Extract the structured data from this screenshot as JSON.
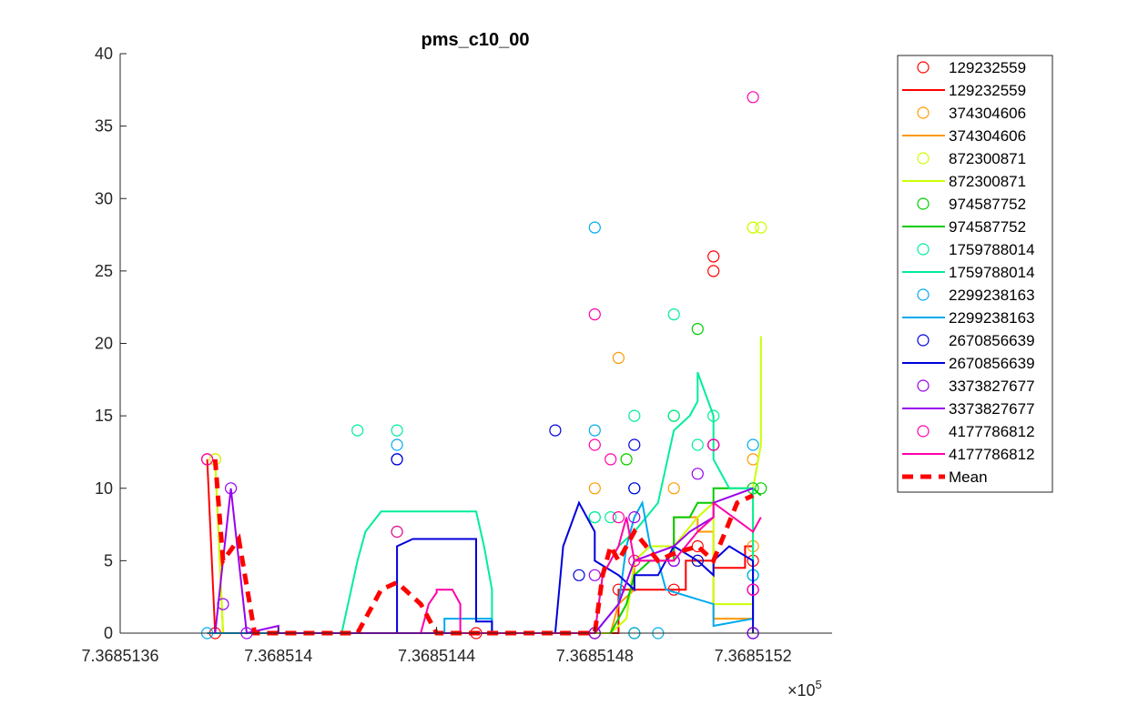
{
  "chart_data": {
    "type": "line",
    "title": "pms_c10_00",
    "xlabel": "",
    "ylabel": "",
    "x_exponent_label": "×10",
    "x_exponent_power": "5",
    "xlim": [
      7.3685136,
      7.3685154
    ],
    "ylim": [
      0,
      40
    ],
    "x_ticks": [
      7.3685136,
      7.368514,
      7.3685144,
      7.3685148,
      7.3685152
    ],
    "x_tick_labels": [
      "7.3685136",
      "7.368514",
      "7.3685144",
      "7.3685148",
      "7.3685152"
    ],
    "y_ticks": [
      0,
      5,
      10,
      15,
      20,
      25,
      30,
      35,
      40
    ],
    "y_tick_labels": [
      "0",
      "5",
      "10",
      "15",
      "20",
      "25",
      "30",
      "35",
      "40"
    ],
    "legend_position": "outside-right",
    "series": [
      {
        "name": "129232559",
        "color": "#ff0000",
        "points": [
          [
            7.36851382,
            12
          ],
          [
            7.36851384,
            0
          ],
          [
            7.3685145,
            0
          ],
          [
            7.3685148,
            0
          ],
          [
            7.36851486,
            3
          ],
          [
            7.368515,
            3
          ],
          [
            7.36851506,
            6
          ],
          [
            7.3685151,
            26
          ],
          [
            7.3685151,
            25
          ],
          [
            7.3685152,
            5
          ]
        ],
        "line": [
          [
            7.36851382,
            12
          ],
          [
            7.36851384,
            0
          ],
          [
            7.36851486,
            0
          ],
          [
            7.36851486,
            3
          ],
          [
            7.36851503,
            3
          ],
          [
            7.36851503,
            5
          ],
          [
            7.3685151,
            5
          ],
          [
            7.3685151,
            4.5
          ],
          [
            7.36851518,
            4.5
          ],
          [
            7.36851518,
            6
          ],
          [
            7.3685152,
            6
          ]
        ]
      },
      {
        "name": "374304606",
        "color": "#ff9900",
        "points": [
          [
            7.36851384,
            12
          ],
          [
            7.3685148,
            10
          ],
          [
            7.3685148,
            0
          ],
          [
            7.36851486,
            19
          ],
          [
            7.3685149,
            0
          ],
          [
            7.368515,
            10
          ],
          [
            7.36851506,
            5
          ],
          [
            7.3685151,
            13
          ],
          [
            7.3685152,
            12
          ],
          [
            7.3685152,
            6
          ]
        ],
        "line": [
          [
            7.36851384,
            12
          ],
          [
            7.36851386,
            0
          ],
          [
            7.36851484,
            0
          ],
          [
            7.36851486,
            2
          ],
          [
            7.3685149,
            3
          ],
          [
            7.3685149,
            5
          ],
          [
            7.368515,
            5
          ],
          [
            7.368515,
            8
          ],
          [
            7.36851506,
            8
          ],
          [
            7.36851506,
            7
          ],
          [
            7.3685151,
            7
          ],
          [
            7.3685151,
            1
          ],
          [
            7.3685152,
            1
          ],
          [
            7.3685152,
            2
          ]
        ]
      },
      {
        "name": "872300871",
        "color": "#ccff00",
        "points": [
          [
            7.36851384,
            12
          ],
          [
            7.3685148,
            0
          ],
          [
            7.36851488,
            12
          ],
          [
            7.3685149,
            5
          ],
          [
            7.368515,
            15
          ],
          [
            7.36851506,
            5
          ],
          [
            7.3685151,
            13
          ],
          [
            7.3685152,
            28
          ],
          [
            7.3685152,
            28
          ],
          [
            7.36851522,
            28
          ]
        ],
        "line": [
          [
            7.36851384,
            12
          ],
          [
            7.36851386,
            0
          ],
          [
            7.36851484,
            0
          ],
          [
            7.36851488,
            1
          ],
          [
            7.3685149,
            5
          ],
          [
            7.36851494,
            6
          ],
          [
            7.368515,
            6
          ],
          [
            7.36851506,
            8
          ],
          [
            7.3685151,
            9
          ],
          [
            7.3685151,
            2
          ],
          [
            7.3685152,
            2
          ],
          [
            7.3685152,
            10
          ],
          [
            7.36851522,
            13
          ],
          [
            7.36851522,
            20.5
          ]
        ]
      },
      {
        "name": "974587752",
        "color": "#00cc00",
        "points": [
          [
            7.3685143,
            7
          ],
          [
            7.36851488,
            12
          ],
          [
            7.3685149,
            0
          ],
          [
            7.368515,
            15
          ],
          [
            7.36851506,
            21
          ],
          [
            7.3685151,
            13
          ],
          [
            7.3685152,
            10
          ],
          [
            7.36851522,
            10
          ]
        ],
        "line": [
          [
            7.36851484,
            0
          ],
          [
            7.36851488,
            2
          ],
          [
            7.3685149,
            4
          ],
          [
            7.36851494,
            5
          ],
          [
            7.368515,
            5
          ],
          [
            7.368515,
            8
          ],
          [
            7.36851504,
            8
          ],
          [
            7.36851506,
            9
          ],
          [
            7.3685151,
            9
          ],
          [
            7.3685151,
            10
          ],
          [
            7.3685152,
            10
          ],
          [
            7.36851522,
            9.5
          ]
        ]
      },
      {
        "name": "1759788014",
        "color": "#00ee99",
        "points": [
          [
            7.3685142,
            14
          ],
          [
            7.3685143,
            14
          ],
          [
            7.3685148,
            8
          ],
          [
            7.3685148,
            8
          ],
          [
            7.36851484,
            8
          ],
          [
            7.3685149,
            15
          ],
          [
            7.368515,
            22
          ],
          [
            7.368515,
            15
          ],
          [
            7.36851506,
            13
          ],
          [
            7.3685151,
            15
          ],
          [
            7.3685152,
            4
          ],
          [
            7.3685152,
            4
          ]
        ],
        "line": [
          [
            7.36851416,
            0
          ],
          [
            7.3685142,
            5
          ],
          [
            7.36851422,
            7
          ],
          [
            7.36851426,
            8.4
          ],
          [
            7.3685145,
            8.4
          ],
          [
            7.36851452,
            6
          ],
          [
            7.36851454,
            3
          ],
          [
            7.36851454,
            0
          ],
          [
            7.3685148,
            0
          ],
          [
            7.36851482,
            4
          ],
          [
            7.36851486,
            6
          ],
          [
            7.3685149,
            7
          ],
          [
            7.36851496,
            9
          ],
          [
            7.368515,
            14
          ],
          [
            7.36851504,
            15
          ],
          [
            7.36851506,
            16
          ],
          [
            7.36851506,
            18
          ],
          [
            7.3685151,
            15
          ],
          [
            7.3685151,
            12
          ],
          [
            7.36851514,
            10
          ],
          [
            7.3685152,
            10
          ],
          [
            7.3685152,
            5
          ]
        ]
      },
      {
        "name": "2299238163",
        "color": "#00aaee",
        "points": [
          [
            7.36851382,
            0
          ],
          [
            7.3685143,
            13
          ],
          [
            7.3685148,
            28
          ],
          [
            7.3685148,
            14
          ],
          [
            7.3685149,
            10
          ],
          [
            7.3685149,
            0
          ],
          [
            7.36851496,
            0
          ],
          [
            7.3685151,
            13
          ],
          [
            7.3685152,
            13
          ],
          [
            7.3685152,
            4
          ]
        ],
        "line": [
          [
            7.36851382,
            0
          ],
          [
            7.36851442,
            0
          ],
          [
            7.36851442,
            1
          ],
          [
            7.36851454,
            1
          ],
          [
            7.36851454,
            0
          ],
          [
            7.3685148,
            0
          ],
          [
            7.36851486,
            2
          ],
          [
            7.36851488,
            6
          ],
          [
            7.3685149,
            8
          ],
          [
            7.36851492,
            9
          ],
          [
            7.36851494,
            6
          ],
          [
            7.36851496,
            5
          ],
          [
            7.36851498,
            3
          ],
          [
            7.3685151,
            2
          ],
          [
            7.3685151,
            0.5
          ],
          [
            7.3685152,
            1
          ],
          [
            7.3685152,
            5
          ]
        ]
      },
      {
        "name": "2670856639",
        "color": "#0000dd",
        "points": [
          [
            7.3685143,
            12
          ],
          [
            7.3685143,
            12
          ],
          [
            7.3685147,
            14
          ],
          [
            7.36851476,
            4
          ],
          [
            7.3685148,
            0
          ],
          [
            7.3685149,
            13
          ],
          [
            7.3685149,
            10
          ],
          [
            7.368515,
            5
          ],
          [
            7.36851506,
            5
          ],
          [
            7.3685152,
            0
          ],
          [
            7.3685152,
            0
          ]
        ],
        "line": [
          [
            7.3685143,
            0
          ],
          [
            7.3685143,
            6
          ],
          [
            7.36851434,
            6.5
          ],
          [
            7.3685145,
            6.5
          ],
          [
            7.3685145,
            0.8
          ],
          [
            7.36851454,
            0.8
          ],
          [
            7.36851454,
            0
          ],
          [
            7.3685147,
            0
          ],
          [
            7.36851472,
            6
          ],
          [
            7.36851476,
            9
          ],
          [
            7.3685148,
            7
          ],
          [
            7.3685148,
            5
          ],
          [
            7.36851486,
            4
          ],
          [
            7.3685149,
            3
          ],
          [
            7.3685149,
            4
          ],
          [
            7.36851496,
            4
          ],
          [
            7.368515,
            6
          ],
          [
            7.36851506,
            5
          ],
          [
            7.3685151,
            4
          ],
          [
            7.3685151,
            5
          ],
          [
            7.36851514,
            6
          ],
          [
            7.3685152,
            5
          ],
          [
            7.3685152,
            0
          ]
        ]
      },
      {
        "name": "3373827677",
        "color": "#9900ee",
        "points": [
          [
            7.36851386,
            2
          ],
          [
            7.36851388,
            10
          ],
          [
            7.36851392,
            0
          ],
          [
            7.3685148,
            4
          ],
          [
            7.3685148,
            0
          ],
          [
            7.3685149,
            8
          ],
          [
            7.368515,
            5
          ],
          [
            7.36851506,
            11
          ],
          [
            7.3685151,
            13
          ],
          [
            7.3685152,
            3
          ],
          [
            7.3685152,
            0
          ]
        ],
        "line": [
          [
            7.36851384,
            0
          ],
          [
            7.36851388,
            10
          ],
          [
            7.36851392,
            0
          ],
          [
            7.368514,
            0.5
          ],
          [
            7.368514,
            0
          ],
          [
            7.3685148,
            0
          ],
          [
            7.36851486,
            2
          ],
          [
            7.3685149,
            5
          ],
          [
            7.368515,
            6
          ],
          [
            7.36851504,
            7
          ],
          [
            7.3685151,
            8
          ],
          [
            7.3685151,
            9
          ],
          [
            7.3685152,
            10
          ]
        ]
      },
      {
        "name": "4177786812",
        "color": "#ff00aa",
        "points": [
          [
            7.36851382,
            12
          ],
          [
            7.3685143,
            7
          ],
          [
            7.3685148,
            22
          ],
          [
            7.3685148,
            13
          ],
          [
            7.36851484,
            12
          ],
          [
            7.36851486,
            8
          ],
          [
            7.3685149,
            5
          ],
          [
            7.3685151,
            13
          ],
          [
            7.3685151,
            13
          ],
          [
            7.3685152,
            37
          ],
          [
            7.3685152,
            3
          ],
          [
            7.3685152,
            3
          ]
        ],
        "line": [
          [
            7.36851436,
            0
          ],
          [
            7.36851438,
            2
          ],
          [
            7.3685144,
            2.8
          ],
          [
            7.3685144,
            3
          ],
          [
            7.36851444,
            3
          ],
          [
            7.36851446,
            2
          ],
          [
            7.36851446,
            0
          ],
          [
            7.3685148,
            0
          ],
          [
            7.36851482,
            4
          ],
          [
            7.36851486,
            6
          ],
          [
            7.36851488,
            8
          ],
          [
            7.3685149,
            5
          ],
          [
            7.368515,
            5
          ],
          [
            7.36851506,
            7
          ],
          [
            7.3685151,
            8
          ],
          [
            7.3685151,
            9
          ],
          [
            7.3685152,
            7
          ],
          [
            7.36851522,
            8
          ]
        ]
      }
    ],
    "mean": {
      "name": "Mean",
      "color": "#ff0000",
      "line": [
        [
          7.36851384,
          12
        ],
        [
          7.36851386,
          5
        ],
        [
          7.3685139,
          6.5
        ],
        [
          7.36851394,
          0
        ],
        [
          7.3685142,
          0
        ],
        [
          7.36851426,
          3
        ],
        [
          7.3685143,
          3.5
        ],
        [
          7.36851436,
          2
        ],
        [
          7.3685144,
          0
        ],
        [
          7.3685148,
          0
        ],
        [
          7.36851482,
          4
        ],
        [
          7.36851484,
          6
        ],
        [
          7.36851486,
          5
        ],
        [
          7.3685149,
          7
        ],
        [
          7.36851496,
          5
        ],
        [
          7.368515,
          5.5
        ],
        [
          7.36851506,
          6
        ],
        [
          7.3685151,
          5
        ],
        [
          7.36851516,
          9
        ],
        [
          7.3685152,
          9.5
        ]
      ]
    }
  }
}
